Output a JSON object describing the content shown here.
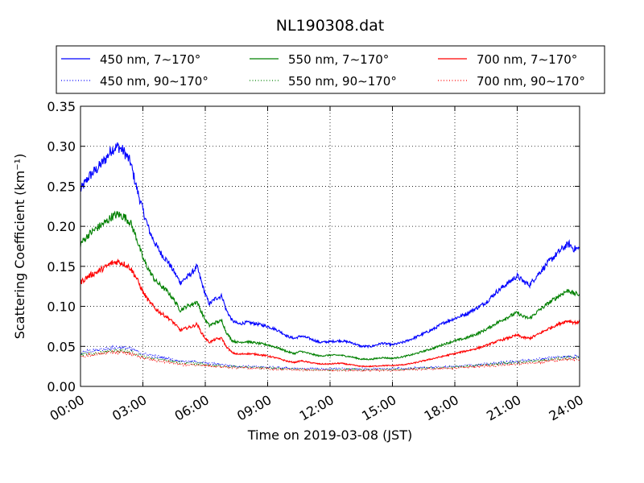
{
  "chart_data": {
    "type": "line",
    "title": "NL190308.dat",
    "xlabel": "Time on 2019-03-08 (JST)",
    "ylabel": "Scattering Coefficient (km⁻¹)",
    "xlim": [
      0,
      24
    ],
    "ylim": [
      0,
      0.35
    ],
    "x_ticks": [
      "00:00",
      "03:00",
      "06:00",
      "09:00",
      "12:00",
      "15:00",
      "18:00",
      "21:00",
      "24:00"
    ],
    "y_ticks": [
      "0.00",
      "0.05",
      "0.10",
      "0.15",
      "0.20",
      "0.25",
      "0.30",
      "0.35"
    ],
    "grid": true,
    "legend_position": "top",
    "series": [
      {
        "name": "450 nm, 7∼170°",
        "color": "#0000ff",
        "style": "solid",
        "points": [
          [
            0,
            0.245
          ],
          [
            0.4,
            0.262
          ],
          [
            0.8,
            0.272
          ],
          [
            1.2,
            0.284
          ],
          [
            1.5,
            0.296
          ],
          [
            1.8,
            0.3
          ],
          [
            2.1,
            0.293
          ],
          [
            2.4,
            0.28
          ],
          [
            2.7,
            0.248
          ],
          [
            3.0,
            0.22
          ],
          [
            3.3,
            0.195
          ],
          [
            3.6,
            0.178
          ],
          [
            3.9,
            0.165
          ],
          [
            4.2,
            0.156
          ],
          [
            4.5,
            0.143
          ],
          [
            4.8,
            0.13
          ],
          [
            5.1,
            0.136
          ],
          [
            5.4,
            0.143
          ],
          [
            5.6,
            0.15
          ],
          [
            5.8,
            0.132
          ],
          [
            6.0,
            0.115
          ],
          [
            6.2,
            0.103
          ],
          [
            6.5,
            0.11
          ],
          [
            6.8,
            0.113
          ],
          [
            7.0,
            0.096
          ],
          [
            7.3,
            0.082
          ],
          [
            7.6,
            0.078
          ],
          [
            8.0,
            0.08
          ],
          [
            8.5,
            0.078
          ],
          [
            9.0,
            0.075
          ],
          [
            9.5,
            0.07
          ],
          [
            10.0,
            0.062
          ],
          [
            10.3,
            0.06
          ],
          [
            10.6,
            0.063
          ],
          [
            11.0,
            0.06
          ],
          [
            11.5,
            0.055
          ],
          [
            12.0,
            0.056
          ],
          [
            12.5,
            0.057
          ],
          [
            13.0,
            0.055
          ],
          [
            13.5,
            0.05
          ],
          [
            14.0,
            0.05
          ],
          [
            14.5,
            0.054
          ],
          [
            15.0,
            0.052
          ],
          [
            15.5,
            0.055
          ],
          [
            16.0,
            0.06
          ],
          [
            16.5,
            0.066
          ],
          [
            17.0,
            0.072
          ],
          [
            17.5,
            0.08
          ],
          [
            18.0,
            0.085
          ],
          [
            18.5,
            0.09
          ],
          [
            19.0,
            0.097
          ],
          [
            19.5,
            0.105
          ],
          [
            20.0,
            0.118
          ],
          [
            20.5,
            0.128
          ],
          [
            21.0,
            0.138
          ],
          [
            21.3,
            0.131
          ],
          [
            21.6,
            0.127
          ],
          [
            22.0,
            0.14
          ],
          [
            22.5,
            0.155
          ],
          [
            23.0,
            0.168
          ],
          [
            23.3,
            0.175
          ],
          [
            23.5,
            0.178
          ],
          [
            23.7,
            0.172
          ],
          [
            24.0,
            0.172
          ]
        ]
      },
      {
        "name": "550 nm, 7∼170°",
        "color": "#008000",
        "style": "solid",
        "points": [
          [
            0,
            0.178
          ],
          [
            0.4,
            0.19
          ],
          [
            0.8,
            0.198
          ],
          [
            1.2,
            0.205
          ],
          [
            1.5,
            0.212
          ],
          [
            1.8,
            0.215
          ],
          [
            2.1,
            0.212
          ],
          [
            2.4,
            0.205
          ],
          [
            2.7,
            0.185
          ],
          [
            3.0,
            0.16
          ],
          [
            3.3,
            0.145
          ],
          [
            3.6,
            0.132
          ],
          [
            3.9,
            0.125
          ],
          [
            4.2,
            0.118
          ],
          [
            4.5,
            0.108
          ],
          [
            4.8,
            0.095
          ],
          [
            5.1,
            0.1
          ],
          [
            5.4,
            0.103
          ],
          [
            5.6,
            0.106
          ],
          [
            5.8,
            0.094
          ],
          [
            6.0,
            0.083
          ],
          [
            6.2,
            0.076
          ],
          [
            6.5,
            0.08
          ],
          [
            6.8,
            0.082
          ],
          [
            7.0,
            0.068
          ],
          [
            7.3,
            0.057
          ],
          [
            7.6,
            0.055
          ],
          [
            8.0,
            0.056
          ],
          [
            8.5,
            0.054
          ],
          [
            9.0,
            0.052
          ],
          [
            9.5,
            0.048
          ],
          [
            10.0,
            0.043
          ],
          [
            10.3,
            0.041
          ],
          [
            10.6,
            0.044
          ],
          [
            11.0,
            0.041
          ],
          [
            11.5,
            0.038
          ],
          [
            12.0,
            0.039
          ],
          [
            12.5,
            0.039
          ],
          [
            13.0,
            0.037
          ],
          [
            13.5,
            0.034
          ],
          [
            14.0,
            0.034
          ],
          [
            14.5,
            0.036
          ],
          [
            15.0,
            0.035
          ],
          [
            15.5,
            0.037
          ],
          [
            16.0,
            0.04
          ],
          [
            16.5,
            0.044
          ],
          [
            17.0,
            0.048
          ],
          [
            17.5,
            0.053
          ],
          [
            18.0,
            0.057
          ],
          [
            18.5,
            0.06
          ],
          [
            19.0,
            0.065
          ],
          [
            19.5,
            0.071
          ],
          [
            20.0,
            0.079
          ],
          [
            20.5,
            0.086
          ],
          [
            21.0,
            0.092
          ],
          [
            21.3,
            0.087
          ],
          [
            21.6,
            0.085
          ],
          [
            22.0,
            0.094
          ],
          [
            22.5,
            0.104
          ],
          [
            23.0,
            0.113
          ],
          [
            23.3,
            0.118
          ],
          [
            23.5,
            0.12
          ],
          [
            23.7,
            0.116
          ],
          [
            24.0,
            0.115
          ]
        ]
      },
      {
        "name": "700 nm, 7∼170°",
        "color": "#ff0000",
        "style": "solid",
        "points": [
          [
            0,
            0.13
          ],
          [
            0.4,
            0.138
          ],
          [
            0.8,
            0.143
          ],
          [
            1.2,
            0.149
          ],
          [
            1.5,
            0.154
          ],
          [
            1.8,
            0.156
          ],
          [
            2.1,
            0.153
          ],
          [
            2.4,
            0.148
          ],
          [
            2.7,
            0.135
          ],
          [
            3.0,
            0.118
          ],
          [
            3.3,
            0.106
          ],
          [
            3.6,
            0.097
          ],
          [
            3.9,
            0.091
          ],
          [
            4.2,
            0.086
          ],
          [
            4.5,
            0.079
          ],
          [
            4.8,
            0.07
          ],
          [
            5.1,
            0.073
          ],
          [
            5.4,
            0.075
          ],
          [
            5.6,
            0.078
          ],
          [
            5.8,
            0.068
          ],
          [
            6.0,
            0.06
          ],
          [
            6.2,
            0.055
          ],
          [
            6.5,
            0.059
          ],
          [
            6.8,
            0.06
          ],
          [
            7.0,
            0.05
          ],
          [
            7.3,
            0.042
          ],
          [
            7.6,
            0.04
          ],
          [
            8.0,
            0.041
          ],
          [
            8.5,
            0.04
          ],
          [
            9.0,
            0.038
          ],
          [
            9.5,
            0.035
          ],
          [
            10.0,
            0.031
          ],
          [
            10.3,
            0.03
          ],
          [
            10.6,
            0.032
          ],
          [
            11.0,
            0.03
          ],
          [
            11.5,
            0.028
          ],
          [
            12.0,
            0.028
          ],
          [
            12.5,
            0.029
          ],
          [
            13.0,
            0.027
          ],
          [
            13.5,
            0.025
          ],
          [
            14.0,
            0.025
          ],
          [
            14.5,
            0.026
          ],
          [
            15.0,
            0.026
          ],
          [
            15.5,
            0.027
          ],
          [
            16.0,
            0.029
          ],
          [
            16.5,
            0.032
          ],
          [
            17.0,
            0.035
          ],
          [
            17.5,
            0.038
          ],
          [
            18.0,
            0.041
          ],
          [
            18.5,
            0.044
          ],
          [
            19.0,
            0.047
          ],
          [
            19.5,
            0.051
          ],
          [
            20.0,
            0.056
          ],
          [
            20.5,
            0.06
          ],
          [
            21.0,
            0.064
          ],
          [
            21.3,
            0.061
          ],
          [
            21.6,
            0.06
          ],
          [
            22.0,
            0.065
          ],
          [
            22.5,
            0.072
          ],
          [
            23.0,
            0.078
          ],
          [
            23.3,
            0.081
          ],
          [
            23.5,
            0.082
          ],
          [
            23.7,
            0.08
          ],
          [
            24.0,
            0.08
          ]
        ]
      },
      {
        "name": "450 nm, 90∼170°",
        "color": "#0000ff",
        "style": "dotted",
        "points": [
          [
            0,
            0.042
          ],
          [
            0.5,
            0.044
          ],
          [
            1.0,
            0.046
          ],
          [
            1.5,
            0.048
          ],
          [
            2.0,
            0.049
          ],
          [
            2.5,
            0.046
          ],
          [
            3.0,
            0.041
          ],
          [
            3.5,
            0.038
          ],
          [
            4.0,
            0.036
          ],
          [
            4.5,
            0.033
          ],
          [
            5.0,
            0.031
          ],
          [
            5.5,
            0.031
          ],
          [
            6.0,
            0.029
          ],
          [
            6.5,
            0.028
          ],
          [
            7.0,
            0.027
          ],
          [
            7.5,
            0.025
          ],
          [
            8.0,
            0.025
          ],
          [
            9.0,
            0.024
          ],
          [
            10.0,
            0.023
          ],
          [
            11.0,
            0.022
          ],
          [
            12.0,
            0.022
          ],
          [
            13.0,
            0.022
          ],
          [
            14.0,
            0.022
          ],
          [
            15.0,
            0.022
          ],
          [
            16.0,
            0.023
          ],
          [
            17.0,
            0.024
          ],
          [
            18.0,
            0.025
          ],
          [
            19.0,
            0.027
          ],
          [
            20.0,
            0.029
          ],
          [
            21.0,
            0.031
          ],
          [
            22.0,
            0.034
          ],
          [
            23.0,
            0.037
          ],
          [
            24.0,
            0.038
          ]
        ]
      },
      {
        "name": "550 nm, 90∼170°",
        "color": "#008000",
        "style": "dotted",
        "points": [
          [
            0,
            0.04
          ],
          [
            0.5,
            0.041
          ],
          [
            1.0,
            0.043
          ],
          [
            1.5,
            0.044
          ],
          [
            2.0,
            0.045
          ],
          [
            2.5,
            0.042
          ],
          [
            3.0,
            0.038
          ],
          [
            3.5,
            0.035
          ],
          [
            4.0,
            0.033
          ],
          [
            4.5,
            0.031
          ],
          [
            5.0,
            0.029
          ],
          [
            5.5,
            0.029
          ],
          [
            6.0,
            0.027
          ],
          [
            6.5,
            0.026
          ],
          [
            7.0,
            0.025
          ],
          [
            7.5,
            0.024
          ],
          [
            8.0,
            0.024
          ],
          [
            9.0,
            0.023
          ],
          [
            10.0,
            0.022
          ],
          [
            11.0,
            0.021
          ],
          [
            12.0,
            0.021
          ],
          [
            13.0,
            0.021
          ],
          [
            14.0,
            0.021
          ],
          [
            15.0,
            0.021
          ],
          [
            16.0,
            0.022
          ],
          [
            17.0,
            0.023
          ],
          [
            18.0,
            0.024
          ],
          [
            19.0,
            0.026
          ],
          [
            20.0,
            0.028
          ],
          [
            21.0,
            0.03
          ],
          [
            22.0,
            0.032
          ],
          [
            23.0,
            0.035
          ],
          [
            24.0,
            0.036
          ]
        ]
      },
      {
        "name": "700 nm, 90∼170°",
        "color": "#ff0000",
        "style": "dotted",
        "points": [
          [
            0,
            0.038
          ],
          [
            0.5,
            0.039
          ],
          [
            1.0,
            0.041
          ],
          [
            1.5,
            0.042
          ],
          [
            2.0,
            0.043
          ],
          [
            2.5,
            0.04
          ],
          [
            3.0,
            0.036
          ],
          [
            3.5,
            0.033
          ],
          [
            4.0,
            0.031
          ],
          [
            4.5,
            0.029
          ],
          [
            5.0,
            0.027
          ],
          [
            5.5,
            0.027
          ],
          [
            6.0,
            0.026
          ],
          [
            6.5,
            0.025
          ],
          [
            7.0,
            0.024
          ],
          [
            7.5,
            0.023
          ],
          [
            8.0,
            0.023
          ],
          [
            9.0,
            0.022
          ],
          [
            10.0,
            0.021
          ],
          [
            11.0,
            0.02
          ],
          [
            12.0,
            0.02
          ],
          [
            13.0,
            0.02
          ],
          [
            14.0,
            0.02
          ],
          [
            15.0,
            0.02
          ],
          [
            16.0,
            0.021
          ],
          [
            17.0,
            0.022
          ],
          [
            18.0,
            0.023
          ],
          [
            19.0,
            0.025
          ],
          [
            20.0,
            0.026
          ],
          [
            21.0,
            0.028
          ],
          [
            22.0,
            0.03
          ],
          [
            23.0,
            0.033
          ],
          [
            24.0,
            0.034
          ]
        ]
      }
    ]
  }
}
